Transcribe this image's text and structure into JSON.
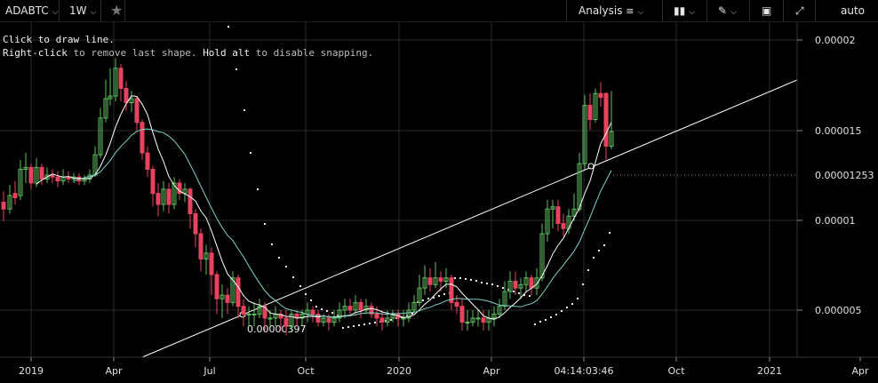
{
  "toolbar": {
    "symbol": "ADABTC",
    "interval": "1W",
    "analysis": "Analysis",
    "scale": "auto"
  },
  "hint": {
    "line1": "Click to draw line.",
    "line2_part1": "Right-click",
    "line2_part2": " to remove last shape. ",
    "line2_part3": "Hold alt",
    "line2_part4": " to disable snapping."
  },
  "chart_data": {
    "type": "candlestick",
    "y_ticks": [
      "0.00002",
      "0.000015",
      "0.00001",
      "0.000005"
    ],
    "x_ticks": [
      "2019",
      "Apr",
      "Jul",
      "Oct",
      "2020",
      "Apr",
      "04:14:03:46",
      "Oct",
      "2021",
      "Apr"
    ],
    "last_price_label": "0.00001253",
    "trendline_start_label": "0.00000397",
    "colors": {
      "up": "#5fbf5f",
      "down": "#e8435e",
      "ma_fast": "#ffffff",
      "ma_slow": "#7fd3c8",
      "grid": "#2a2a2a"
    }
  }
}
